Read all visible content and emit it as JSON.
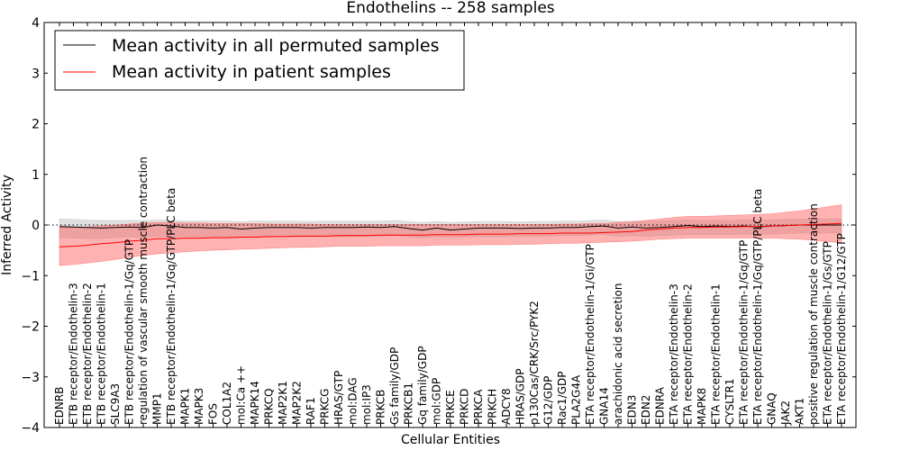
{
  "chart_data": {
    "type": "line",
    "title": "Endothelins -- 258 samples",
    "xlabel": "Cellular Entities",
    "ylabel": "Inferred Activity",
    "ylim": [
      -4,
      4
    ],
    "yticks": [
      -4,
      -3,
      -2,
      -1,
      0,
      1,
      2,
      3,
      4
    ],
    "ytick_labels": [
      "−4",
      "−3",
      "−2",
      "−1",
      "0",
      "1",
      "2",
      "3",
      "4"
    ],
    "grid": false,
    "legend_position": "top-left",
    "reference_line": 0,
    "categories": [
      "EDNRB",
      "ETB receptor/Endothelin-3",
      "ETB receptor/Endothelin-2",
      "ETB receptor/Endothelin-1",
      "SLC9A3",
      "ETB receptor/Endothelin-1/Gq/GTP",
      "regulation of vascular smooth muscle contraction",
      "MMP1",
      "ETB receptor/Endothelin-1/Gq/GTP/PLC beta",
      "MAPK1",
      "MAPK3",
      "FOS",
      "COL1A2",
      "mol:Ca ++",
      "MAPK14",
      "PRKCQ",
      "MAP2K1",
      "MAP2K2",
      "RAF1",
      "PRKCG",
      "HRAS/GTP",
      "mol:DAG",
      "mol:IP3",
      "PRKCB",
      "Gs family/GDP",
      "PRKCB1",
      "Gq family/GDP",
      "mol:GDP",
      "PRKCE",
      "PRKCD",
      "PRKCA",
      "PRKCH",
      "ADCY8",
      "HRAS/GDP",
      "p130Cas/CRK/Src/PYK2",
      "G12/GDP",
      "Rac1/GDP",
      "PLA2G4A",
      "ETA receptor/Endothelin-1/Gi/GTP",
      "GNA14",
      "arachidonic acid secretion",
      "EDN3",
      "EDN2",
      "EDNRA",
      "ETA receptor/Endothelin-3",
      "ETA receptor/Endothelin-2",
      "MAPK8",
      "ETA receptor/Endothelin-1",
      "CYSLTR1",
      "ETA receptor/Endothelin-1/Gq/GTP",
      "ETA receptor/Endothelin-1/Gq/GTP/PLC beta",
      "GNAQ",
      "JAK2",
      "AKT1",
      "positive regulation of muscle contraction",
      "ETA receptor/Endothelin-1/Gs/GTP",
      "ETA receptor/Endothelin-1/G12/GTP"
    ],
    "series": [
      {
        "name": "Mean activity in all permuted samples",
        "color": "#000000",
        "values": [
          -0.03,
          -0.04,
          -0.05,
          -0.06,
          -0.05,
          -0.04,
          -0.05,
          0.0,
          -0.02,
          -0.05,
          -0.05,
          -0.06,
          -0.05,
          -0.08,
          -0.06,
          -0.05,
          -0.05,
          -0.05,
          -0.06,
          -0.05,
          -0.05,
          -0.05,
          -0.04,
          -0.05,
          -0.03,
          -0.07,
          -0.1,
          -0.06,
          -0.1,
          -0.08,
          -0.06,
          -0.06,
          -0.06,
          -0.07,
          -0.06,
          -0.06,
          -0.05,
          -0.05,
          -0.03,
          -0.02,
          -0.06,
          -0.04,
          -0.06,
          -0.05,
          -0.03,
          -0.01,
          -0.03,
          -0.02,
          -0.03,
          -0.02,
          -0.04,
          -0.02,
          -0.01,
          0.0,
          0.0,
          0.0,
          0.0
        ],
        "band_lower": [
          -0.25,
          -0.26,
          -0.27,
          -0.27,
          -0.25,
          -0.24,
          -0.24,
          -0.22,
          -0.22,
          -0.23,
          -0.23,
          -0.23,
          -0.23,
          -0.25,
          -0.24,
          -0.23,
          -0.23,
          -0.23,
          -0.23,
          -0.23,
          -0.23,
          -0.23,
          -0.22,
          -0.22,
          -0.21,
          -0.23,
          -0.25,
          -0.23,
          -0.25,
          -0.24,
          -0.23,
          -0.23,
          -0.23,
          -0.23,
          -0.22,
          -0.22,
          -0.21,
          -0.21,
          -0.2,
          -0.19,
          -0.22,
          -0.21,
          -0.22,
          -0.21,
          -0.2,
          -0.19,
          -0.19,
          -0.19,
          -0.19,
          -0.18,
          -0.19,
          -0.18,
          -0.17,
          -0.16,
          -0.16,
          -0.16,
          -0.16
        ],
        "band_upper": [
          0.12,
          0.11,
          0.1,
          0.09,
          0.09,
          0.09,
          0.09,
          0.1,
          0.09,
          0.08,
          0.08,
          0.08,
          0.08,
          0.06,
          0.08,
          0.08,
          0.08,
          0.08,
          0.07,
          0.08,
          0.08,
          0.08,
          0.08,
          0.08,
          0.09,
          0.07,
          0.05,
          0.07,
          0.05,
          0.06,
          0.07,
          0.07,
          0.07,
          0.06,
          0.07,
          0.07,
          0.08,
          0.08,
          0.09,
          0.1,
          0.07,
          0.08,
          0.07,
          0.08,
          0.09,
          0.1,
          0.09,
          0.1,
          0.09,
          0.1,
          0.09,
          0.1,
          0.11,
          0.12,
          0.12,
          0.12,
          0.12
        ]
      },
      {
        "name": "Mean activity in patient samples",
        "color": "#ff0000",
        "values": [
          -0.43,
          -0.42,
          -0.4,
          -0.37,
          -0.35,
          -0.32,
          -0.3,
          -0.27,
          -0.27,
          -0.26,
          -0.26,
          -0.25,
          -0.25,
          -0.24,
          -0.24,
          -0.23,
          -0.23,
          -0.22,
          -0.22,
          -0.22,
          -0.21,
          -0.21,
          -0.21,
          -0.2,
          -0.2,
          -0.2,
          -0.2,
          -0.19,
          -0.19,
          -0.19,
          -0.18,
          -0.18,
          -0.18,
          -0.17,
          -0.17,
          -0.17,
          -0.16,
          -0.16,
          -0.16,
          -0.15,
          -0.14,
          -0.13,
          -0.1,
          -0.08,
          -0.06,
          -0.05,
          -0.05,
          -0.04,
          -0.04,
          -0.03,
          -0.03,
          -0.02,
          -0.01,
          0.0,
          0.01,
          0.02,
          0.03
        ],
        "band_lower": [
          -0.8,
          -0.78,
          -0.75,
          -0.72,
          -0.68,
          -0.64,
          -0.6,
          -0.57,
          -0.55,
          -0.53,
          -0.51,
          -0.5,
          -0.49,
          -0.48,
          -0.47,
          -0.46,
          -0.45,
          -0.44,
          -0.44,
          -0.43,
          -0.42,
          -0.42,
          -0.42,
          -0.41,
          -0.41,
          -0.41,
          -0.41,
          -0.4,
          -0.4,
          -0.4,
          -0.39,
          -0.39,
          -0.39,
          -0.38,
          -0.38,
          -0.37,
          -0.36,
          -0.36,
          -0.35,
          -0.34,
          -0.33,
          -0.32,
          -0.3,
          -0.28,
          -0.27,
          -0.26,
          -0.26,
          -0.26,
          -0.26,
          -0.26,
          -0.26,
          -0.26,
          -0.27,
          -0.28,
          -0.3,
          -0.33,
          -0.35
        ],
        "band_upper": [
          -0.05,
          -0.05,
          -0.04,
          -0.02,
          0.0,
          0.02,
          0.04,
          0.05,
          0.05,
          0.04,
          0.04,
          0.03,
          0.03,
          0.03,
          0.03,
          0.02,
          0.02,
          0.02,
          0.02,
          0.01,
          0.01,
          0.01,
          0.01,
          0.01,
          0.01,
          0.01,
          0.01,
          0.01,
          0.01,
          0.01,
          0.01,
          0.01,
          0.01,
          0.01,
          0.01,
          0.01,
          0.02,
          0.02,
          0.03,
          0.03,
          0.05,
          0.06,
          0.09,
          0.12,
          0.15,
          0.17,
          0.17,
          0.18,
          0.19,
          0.2,
          0.21,
          0.22,
          0.25,
          0.28,
          0.32,
          0.36,
          0.4
        ]
      }
    ],
    "band_colors": [
      "#bbbbbb",
      "#ff5555"
    ]
  }
}
